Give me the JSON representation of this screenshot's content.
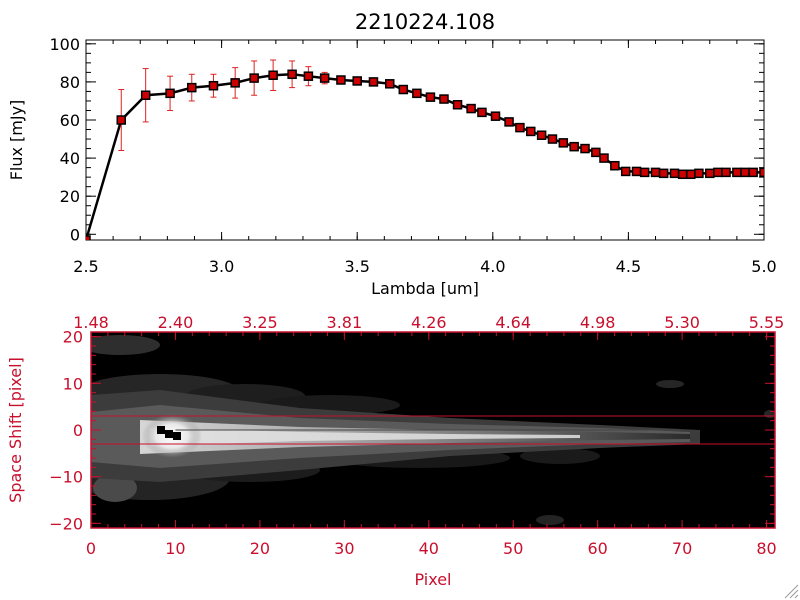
{
  "colors": {
    "spectrum_line": "#000000",
    "marker": "#cc0000",
    "error_bar": "#dd2222",
    "image_frame": "#c8102e",
    "extraction_lines": "#c8102e"
  },
  "chart_data": [
    {
      "type": "line",
      "title": "2210224.108",
      "xlabel": "Lambda [um]",
      "ylabel": "Flux [mJy]",
      "xlim": [
        2.5,
        5.0
      ],
      "ylim": [
        -3,
        102
      ],
      "x_ticks": [
        2.5,
        3.0,
        3.5,
        4.0,
        4.5,
        5.0
      ],
      "x_tick_labels": [
        "2.5",
        "3.0",
        "3.5",
        "4.0",
        "4.5",
        "5.0"
      ],
      "y_ticks": [
        0,
        20,
        40,
        60,
        80,
        100
      ],
      "y_tick_labels": [
        "0",
        "20",
        "40",
        "60",
        "80",
        "100"
      ],
      "grid": false,
      "legend": "none",
      "series": [
        {
          "x": [
            2.5,
            2.63,
            2.72,
            2.81,
            2.89,
            2.97,
            3.05,
            3.12,
            3.19,
            3.26,
            3.32,
            3.38,
            3.44,
            3.5,
            3.56,
            3.62,
            3.67,
            3.72,
            3.77,
            3.82,
            3.87,
            3.92,
            3.96,
            4.01,
            4.06,
            4.1,
            4.14,
            4.18,
            4.22,
            4.26,
            4.3,
            4.34,
            4.38,
            4.41,
            4.45,
            4.49,
            4.53,
            4.56,
            4.6,
            4.63,
            4.67,
            4.7,
            4.73,
            4.76,
            4.8,
            4.83,
            4.86,
            4.9,
            4.93,
            4.96,
            5.0
          ],
          "y": [
            -3,
            60,
            73,
            74,
            77,
            78,
            79.5,
            82,
            83.5,
            84,
            83,
            82,
            81,
            80.5,
            80,
            79,
            76,
            74,
            72,
            71,
            68,
            66,
            64,
            62,
            59,
            56,
            54,
            52,
            50,
            48,
            46,
            45,
            43,
            40,
            36,
            33,
            33,
            32.5,
            32.5,
            32,
            32,
            31.5,
            31.5,
            32,
            32,
            32.5,
            32.5,
            32.5,
            32.5,
            32.5,
            32.5
          ],
          "err": [
            0,
            16,
            14,
            9,
            7,
            6,
            8,
            9,
            8,
            7,
            5,
            3,
            2,
            2,
            2,
            2,
            2,
            2,
            2,
            2,
            2,
            2,
            2,
            2,
            2,
            2,
            2,
            2,
            2,
            2,
            2,
            2,
            2,
            2,
            2,
            2,
            2,
            2,
            2,
            2,
            2,
            2,
            2,
            2,
            2,
            2,
            2,
            2,
            2,
            2,
            2
          ]
        }
      ]
    },
    {
      "type": "heatmap",
      "xlabel": "Pixel",
      "ylabel": "Space Shift [pixel]",
      "xlim": [
        0,
        81
      ],
      "ylim": [
        -21,
        21
      ],
      "x_ticks": [
        0,
        10,
        20,
        30,
        40,
        50,
        60,
        70,
        80
      ],
      "x_tick_labels": [
        "0",
        "10",
        "20",
        "30",
        "40",
        "50",
        "60",
        "70",
        "80"
      ],
      "y_ticks": [
        -20,
        -10,
        0,
        10,
        20
      ],
      "y_tick_labels": [
        "−20",
        "−10",
        "0",
        "10",
        "20"
      ],
      "top_axis_ticks": [
        0,
        10,
        20,
        30,
        40,
        50,
        60,
        70,
        80
      ],
      "top_axis_labels": [
        "1.48",
        "2.40",
        "3.25",
        "3.81",
        "4.26",
        "4.64",
        "4.98",
        "5.30",
        "5.55"
      ],
      "extraction_aperture": [
        -3,
        3
      ],
      "trace_peak_pixel": 10,
      "colormap": "grayscale",
      "legend": "none"
    }
  ]
}
